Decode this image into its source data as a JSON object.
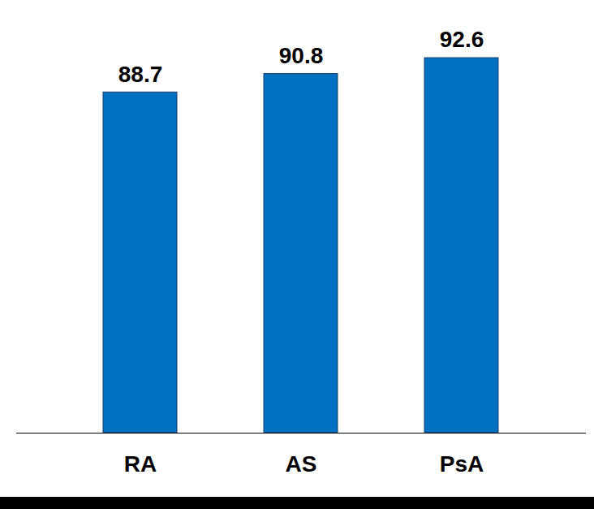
{
  "chart_data": {
    "type": "bar",
    "categories": [
      "RA",
      "AS",
      "PsA"
    ],
    "values": [
      88.7,
      90.8,
      92.6
    ],
    "color": "#0070c0",
    "ylim": [
      50,
      95
    ],
    "yticks": [],
    "data_labels": true,
    "tick_labels": "x",
    "grid": false
  }
}
